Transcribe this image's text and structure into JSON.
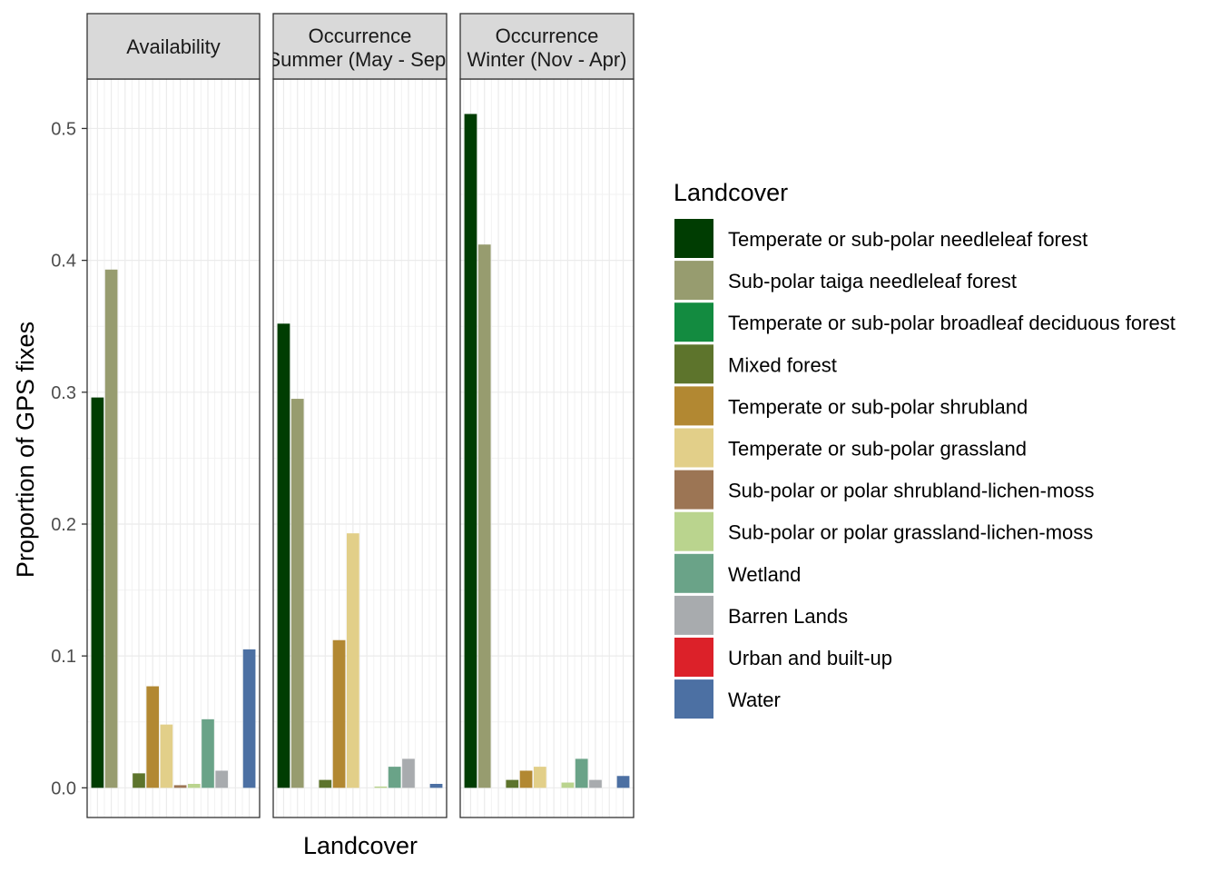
{
  "chart_data": {
    "type": "bar",
    "xlabel": "Landcover",
    "ylabel": "Proportion of GPS fixes",
    "ylim": [
      -0.0225,
      0.5375
    ],
    "y_ticks": [
      {
        "value": 0.0,
        "label": "0.0"
      },
      {
        "value": 0.1,
        "label": "0.1"
      },
      {
        "value": 0.2,
        "label": "0.2"
      },
      {
        "value": 0.3,
        "label": "0.3"
      },
      {
        "value": 0.4,
        "label": "0.4"
      },
      {
        "value": 0.5,
        "label": "0.5"
      }
    ],
    "grid": true,
    "x_tick_labels_shown": false,
    "legend": {
      "title": "Landcover",
      "position": "right"
    },
    "categories": [
      "Temperate or sub-polar needleleaf forest",
      "Sub-polar taiga needleleaf forest",
      "Temperate or sub-polar broadleaf deciduous forest",
      "Mixed forest",
      "Temperate or sub-polar shrubland",
      "Temperate or sub-polar grassland",
      "Sub-polar or polar shrubland-lichen-moss",
      "Sub-polar or polar grassland-lichen-moss",
      "Wetland",
      "Barren Lands",
      "Urban and built-up",
      "Water"
    ],
    "colors": [
      "#003d02",
      "#979c6f",
      "#138b40",
      "#5d742c",
      "#b28832",
      "#e2cf89",
      "#9c7554",
      "#bad48e",
      "#6aa388",
      "#a8abae",
      "#dc2129",
      "#4c70a3"
    ],
    "panels": [
      {
        "strip": [
          "Availability"
        ],
        "values": [
          0.296,
          0.393,
          0.0,
          0.011,
          0.077,
          0.048,
          0.002,
          0.003,
          0.052,
          0.013,
          0.0,
          0.105
        ]
      },
      {
        "strip": [
          "Occurrence",
          "Summer (May - Sep)"
        ],
        "values": [
          0.352,
          0.295,
          0.0,
          0.006,
          0.112,
          0.193,
          0.0,
          0.001,
          0.016,
          0.022,
          0.0,
          0.003
        ]
      },
      {
        "strip": [
          "Occurrence",
          "Winter (Nov - Apr)"
        ],
        "values": [
          0.511,
          0.412,
          0.0,
          0.006,
          0.013,
          0.016,
          0.0,
          0.004,
          0.022,
          0.006,
          0.0,
          0.009
        ]
      }
    ]
  }
}
